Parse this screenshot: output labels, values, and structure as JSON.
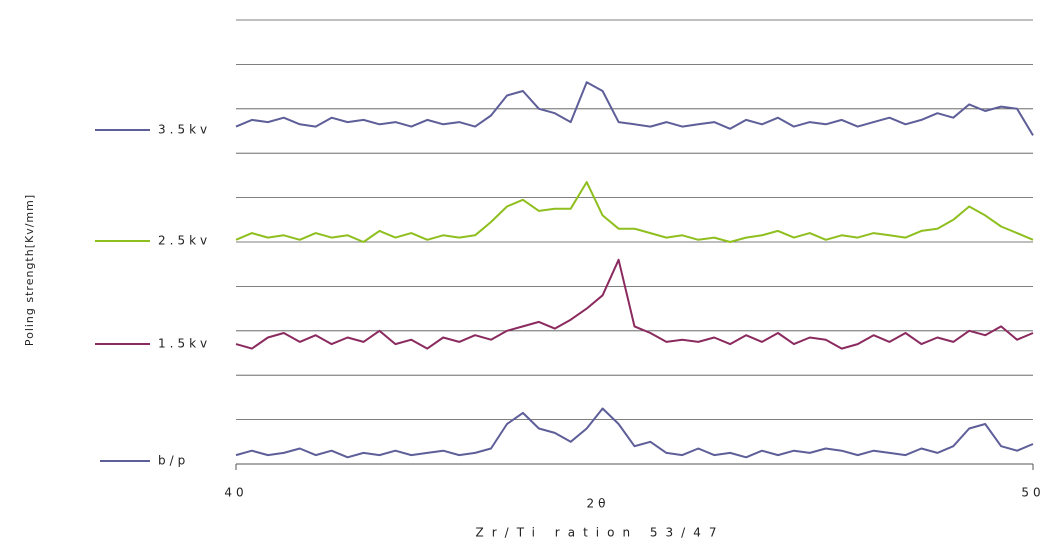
{
  "chart_data": {
    "type": "line",
    "y_label": "Poling strength[Kv/mm]",
    "x_label": "2θ",
    "subtitle": "Zr/Ti ration 53/47",
    "xlim": [
      40,
      50
    ],
    "xticks": [
      40,
      50
    ],
    "ylim": [
      0,
      10
    ],
    "ygrid": [
      1,
      2,
      3,
      4,
      5,
      6,
      7,
      8,
      9,
      10
    ],
    "x": [
      40.0,
      40.2,
      40.4,
      40.6,
      40.8,
      41.0,
      41.2,
      41.4,
      41.6,
      41.8,
      42.0,
      42.2,
      42.4,
      42.6,
      42.8,
      43.0,
      43.2,
      43.4,
      43.6,
      43.8,
      44.0,
      44.2,
      44.4,
      44.6,
      44.8,
      45.0,
      45.2,
      45.4,
      45.6,
      45.8,
      46.0,
      46.2,
      46.4,
      46.6,
      46.8,
      47.0,
      47.2,
      47.4,
      47.6,
      47.8,
      48.0,
      48.2,
      48.4,
      48.6,
      48.8,
      49.0,
      49.2,
      49.4,
      49.6,
      49.8,
      50.0
    ],
    "series": [
      {
        "name": "3.5kv",
        "color": "#5e5e99",
        "values": [
          7.6,
          7.75,
          7.7,
          7.8,
          7.65,
          7.6,
          7.8,
          7.7,
          7.75,
          7.65,
          7.7,
          7.6,
          7.75,
          7.65,
          7.7,
          7.6,
          7.85,
          8.3,
          8.4,
          8.0,
          7.9,
          7.7,
          8.6,
          8.4,
          7.7,
          7.65,
          7.6,
          7.7,
          7.6,
          7.65,
          7.7,
          7.55,
          7.75,
          7.65,
          7.8,
          7.6,
          7.7,
          7.65,
          7.75,
          7.6,
          7.7,
          7.8,
          7.65,
          7.75,
          7.9,
          7.8,
          8.1,
          7.95,
          8.05,
          8.0,
          7.4
        ]
      },
      {
        "name": "2.5kv",
        "color": "#8fbf1f",
        "values": [
          5.05,
          5.2,
          5.1,
          5.15,
          5.05,
          5.2,
          5.1,
          5.15,
          5.0,
          5.25,
          5.1,
          5.2,
          5.05,
          5.15,
          5.1,
          5.15,
          5.45,
          5.8,
          5.95,
          5.7,
          5.75,
          5.75,
          6.35,
          5.6,
          5.3,
          5.3,
          5.2,
          5.1,
          5.15,
          5.05,
          5.1,
          5.0,
          5.1,
          5.15,
          5.25,
          5.1,
          5.2,
          5.05,
          5.15,
          5.1,
          5.2,
          5.15,
          5.1,
          5.25,
          5.3,
          5.5,
          5.8,
          5.6,
          5.35,
          5.2,
          5.05
        ]
      },
      {
        "name": "1.5kv",
        "color": "#8b2a5e",
        "values": [
          2.7,
          2.6,
          2.85,
          2.95,
          2.75,
          2.9,
          2.7,
          2.85,
          2.75,
          3.0,
          2.7,
          2.8,
          2.6,
          2.85,
          2.75,
          2.9,
          2.8,
          3.0,
          3.1,
          3.2,
          3.05,
          3.25,
          3.5,
          3.8,
          4.6,
          3.1,
          2.95,
          2.75,
          2.8,
          2.75,
          2.85,
          2.7,
          2.9,
          2.75,
          2.95,
          2.7,
          2.85,
          2.8,
          2.6,
          2.7,
          2.9,
          2.75,
          2.95,
          2.7,
          2.85,
          2.75,
          3.0,
          2.9,
          3.1,
          2.8,
          2.95
        ]
      },
      {
        "name": "b/p",
        "color": "#5e5e99",
        "values": [
          0.2,
          0.3,
          0.2,
          0.25,
          0.35,
          0.2,
          0.3,
          0.15,
          0.25,
          0.2,
          0.3,
          0.2,
          0.25,
          0.3,
          0.2,
          0.25,
          0.35,
          0.9,
          1.15,
          0.8,
          0.7,
          0.5,
          0.8,
          1.25,
          0.9,
          0.4,
          0.5,
          0.25,
          0.2,
          0.35,
          0.2,
          0.25,
          0.15,
          0.3,
          0.2,
          0.3,
          0.25,
          0.35,
          0.3,
          0.2,
          0.3,
          0.25,
          0.2,
          0.35,
          0.25,
          0.4,
          0.8,
          0.9,
          0.4,
          0.3,
          0.45
        ]
      }
    ]
  }
}
